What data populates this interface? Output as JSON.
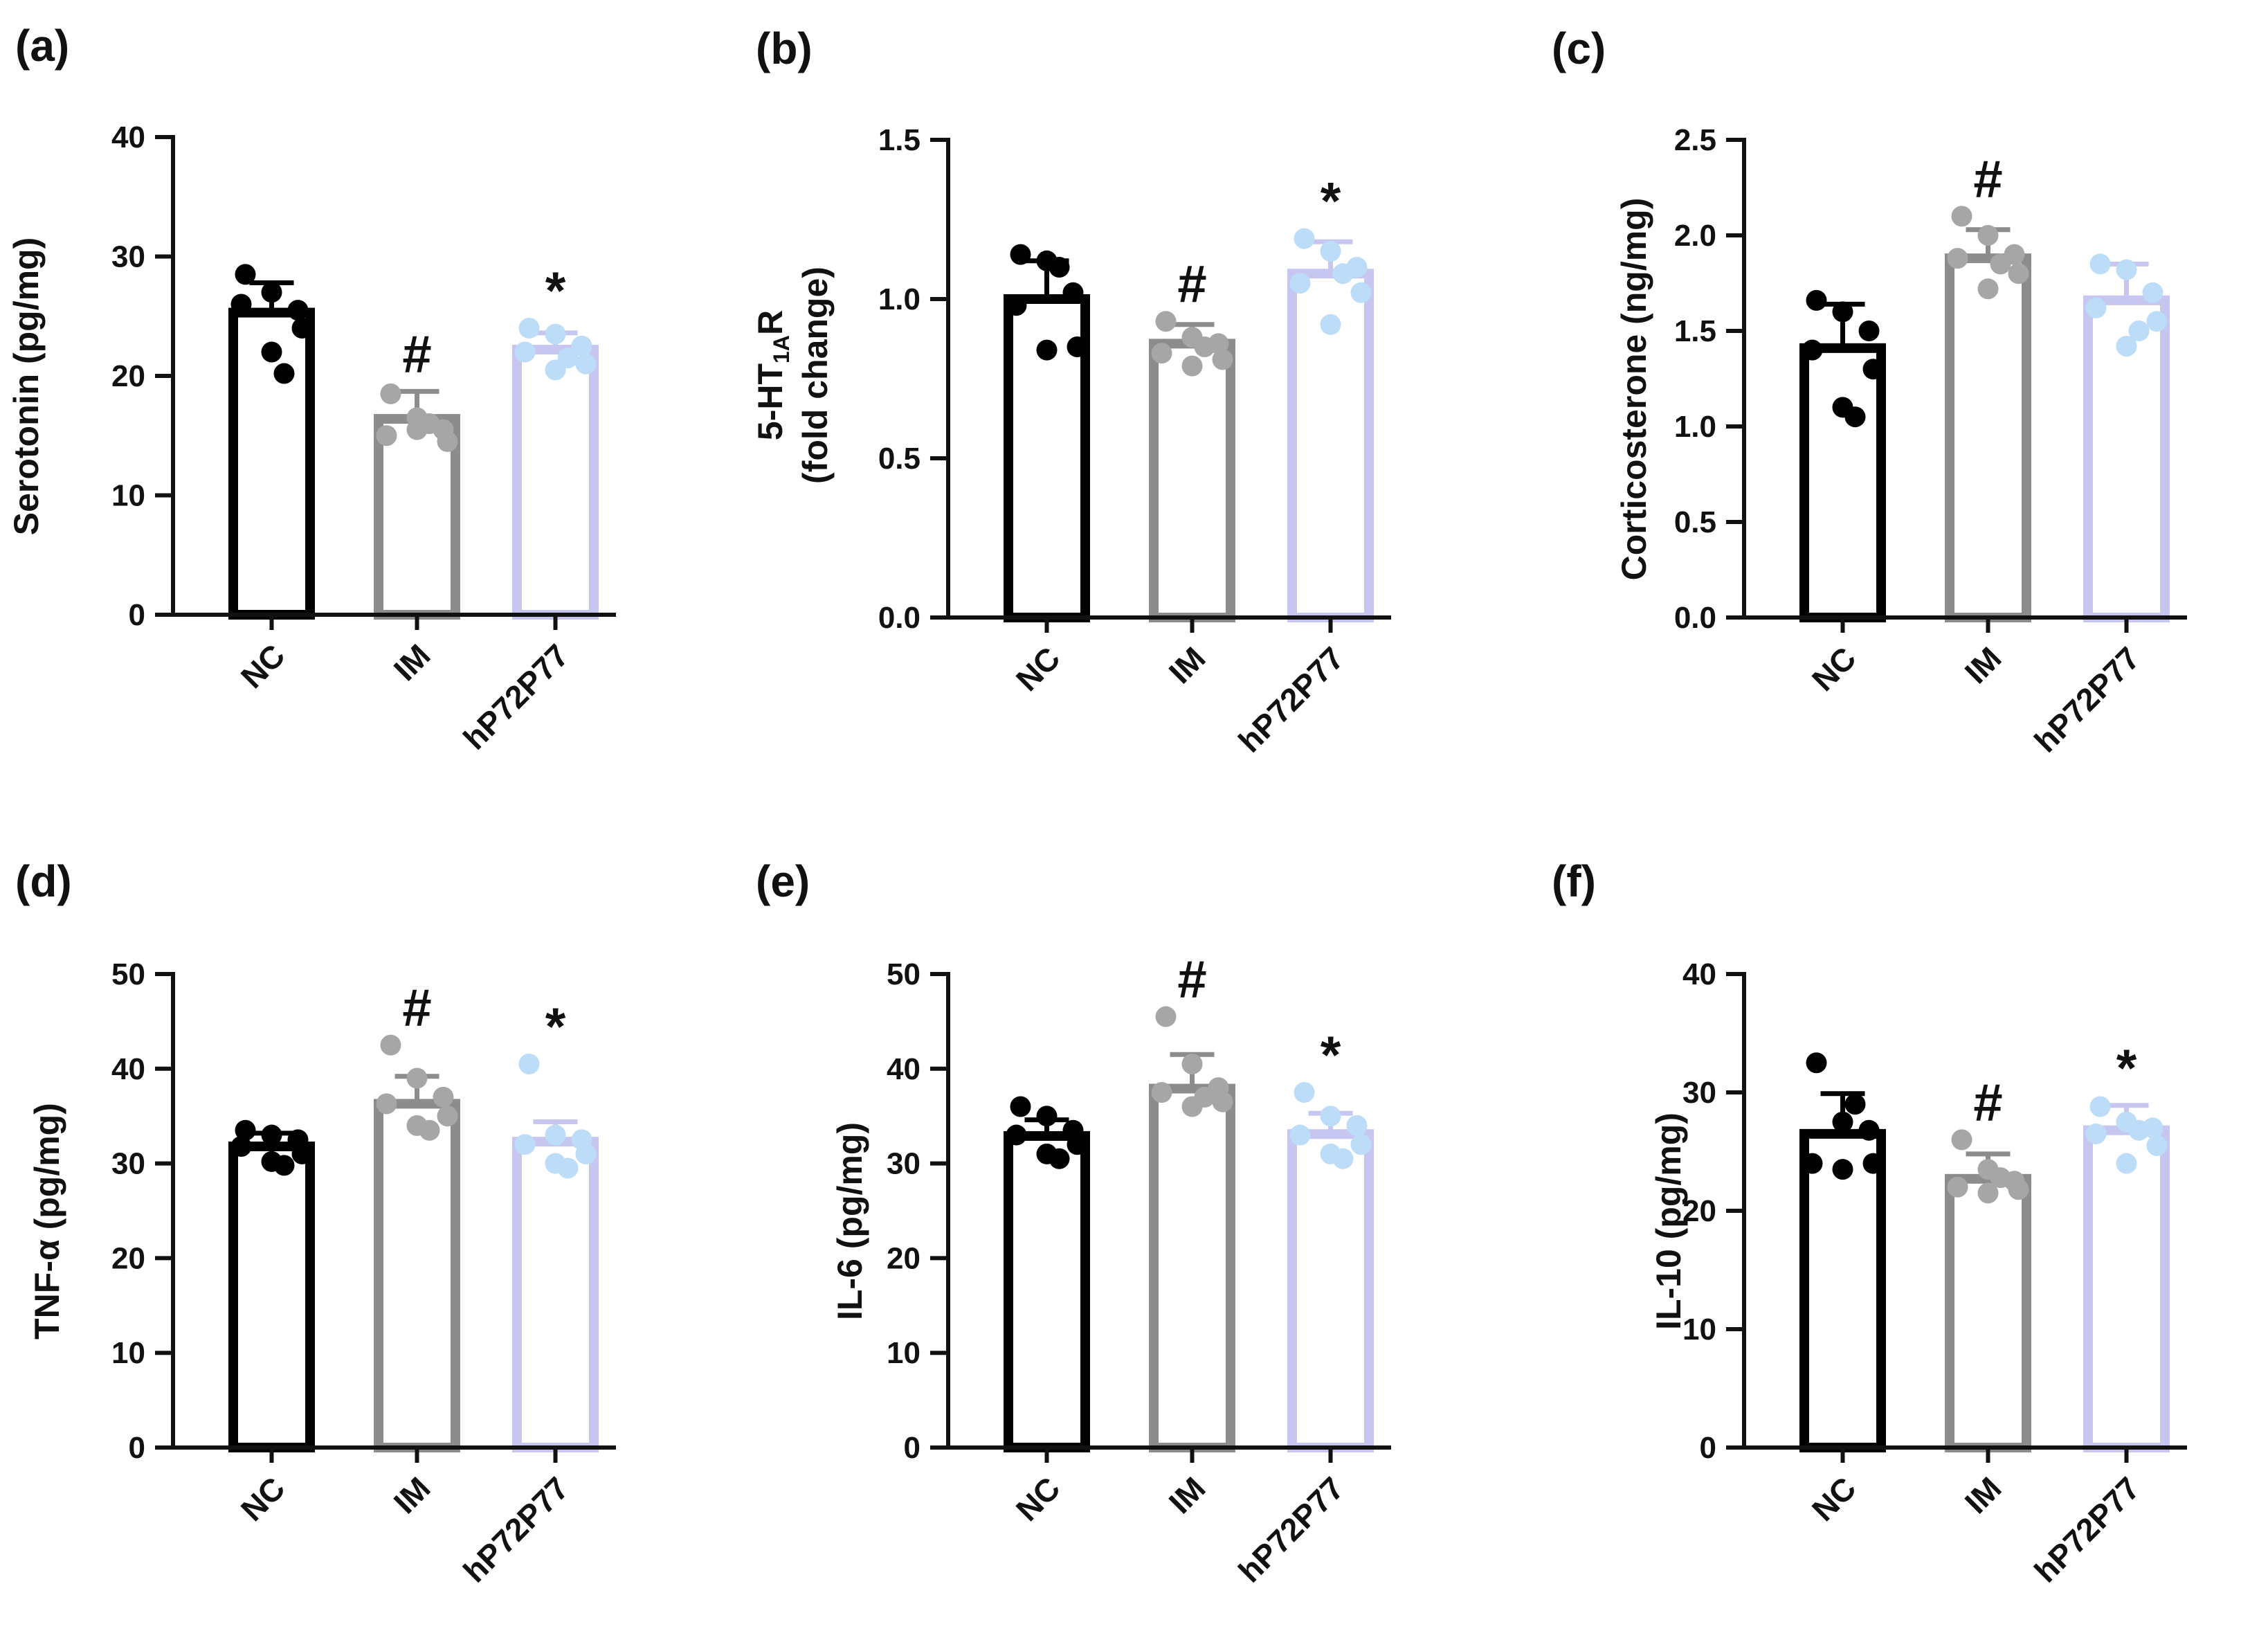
{
  "figure": {
    "background": "#ffffff"
  },
  "chart_data": [
    {
      "panel": "(a)",
      "type": "bar",
      "ylabel": "Serotonin (pg/mg)",
      "ylabel_line2": "",
      "ylim": [
        0,
        40
      ],
      "yticks": [
        0,
        10,
        20,
        30,
        40
      ],
      "ytick_labels": [
        "0",
        "10",
        "20",
        "30",
        "40"
      ],
      "categories": [
        "NC",
        "IM",
        "hP72P77"
      ],
      "colors": [
        "#000000",
        "#8c8c8c",
        "#c6c6f0"
      ],
      "dot_colors": [
        "#000000",
        "#a6a6a6",
        "#bcdcf8"
      ],
      "values": [
        25.3,
        16.4,
        22.2
      ],
      "errors": [
        2.5,
        2.3,
        1.4
      ],
      "points": [
        [
          28.5,
          27,
          25.5,
          26,
          24,
          22,
          20.2
        ],
        [
          18.5,
          16.5,
          15.5,
          15,
          14.5,
          15.5,
          16
        ],
        [
          24,
          23.5,
          22.5,
          22,
          21,
          20.5,
          21.5
        ]
      ],
      "annotations": [
        "",
        "#",
        "*"
      ]
    },
    {
      "panel": "(b)",
      "type": "bar",
      "ylabel": "5-HT",
      "ylabel_sub": "1A",
      "ylabel_suffix": "R",
      "ylabel_line2": "(fold change)",
      "ylim": [
        0,
        1.5
      ],
      "yticks": [
        0,
        0.5,
        1.0,
        1.5
      ],
      "ytick_labels": [
        "0.0",
        "0.5",
        "1.0",
        "1.5"
      ],
      "categories": [
        "NC",
        "IM",
        "hP72P77"
      ],
      "colors": [
        "#000000",
        "#8c8c8c",
        "#c6c6f0"
      ],
      "dot_colors": [
        "#000000",
        "#a6a6a6",
        "#bcdcf8"
      ],
      "values": [
        1.0,
        0.86,
        1.08
      ],
      "errors": [
        0.12,
        0.06,
        0.1
      ],
      "points": [
        [
          1.14,
          1.12,
          1.02,
          0.98,
          0.85,
          0.84,
          1.1
        ],
        [
          0.93,
          0.88,
          0.86,
          0.83,
          0.81,
          0.79,
          0.85
        ],
        [
          1.19,
          1.15,
          1.1,
          1.05,
          1.02,
          0.92,
          1.08
        ]
      ],
      "annotations": [
        "",
        "#",
        "*"
      ]
    },
    {
      "panel": "(c)",
      "type": "bar",
      "ylabel": "Corticosterone (ng/mg)",
      "ylabel_line2": "",
      "ylim": [
        0,
        2.5
      ],
      "yticks": [
        0,
        0.5,
        1.0,
        1.5,
        2.0,
        2.5
      ],
      "ytick_labels": [
        "0.0",
        "0.5",
        "1.0",
        "1.5",
        "2.0",
        "2.5"
      ],
      "categories": [
        "NC",
        "IM",
        "hP72P77"
      ],
      "colors": [
        "#000000",
        "#8c8c8c",
        "#c6c6f0"
      ],
      "dot_colors": [
        "#000000",
        "#a6a6a6",
        "#bcdcf8"
      ],
      "values": [
        1.41,
        1.88,
        1.66
      ],
      "errors": [
        0.23,
        0.15,
        0.19
      ],
      "points": [
        [
          1.66,
          1.6,
          1.5,
          1.4,
          1.3,
          1.1,
          1.05
        ],
        [
          2.1,
          2.0,
          1.9,
          1.88,
          1.8,
          1.72,
          1.85
        ],
        [
          1.85,
          1.82,
          1.7,
          1.62,
          1.55,
          1.42,
          1.5
        ]
      ],
      "annotations": [
        "",
        "#",
        ""
      ]
    },
    {
      "panel": "(d)",
      "type": "bar",
      "ylabel": "TNF-α (pg/mg)",
      "ylabel_line2": "",
      "ylim": [
        0,
        50
      ],
      "yticks": [
        0,
        10,
        20,
        30,
        40,
        50
      ],
      "ytick_labels": [
        "0",
        "10",
        "20",
        "30",
        "40",
        "50"
      ],
      "categories": [
        "NC",
        "IM",
        "hP72P77"
      ],
      "colors": [
        "#000000",
        "#8c8c8c",
        "#c6c6f0"
      ],
      "dot_colors": [
        "#000000",
        "#a6a6a6",
        "#bcdcf8"
      ],
      "values": [
        31.8,
        36.3,
        32.3
      ],
      "errors": [
        1.4,
        2.9,
        2.1
      ],
      "points": [
        [
          33.5,
          33,
          32.5,
          31.8,
          31,
          30.2,
          29.8
        ],
        [
          42.5,
          39,
          37,
          36.3,
          35,
          34,
          33.5
        ],
        [
          40.5,
          33,
          32.5,
          32,
          31,
          30,
          29.5
        ]
      ],
      "annotations": [
        "",
        "#",
        "*"
      ]
    },
    {
      "panel": "(e)",
      "type": "bar",
      "ylabel": "IL-6 (pg/mg)",
      "ylabel_line2": "",
      "ylim": [
        0,
        50
      ],
      "yticks": [
        0,
        10,
        20,
        30,
        40,
        50
      ],
      "ytick_labels": [
        "0",
        "10",
        "20",
        "30",
        "40",
        "50"
      ],
      "categories": [
        "NC",
        "IM",
        "hP72P77"
      ],
      "colors": [
        "#000000",
        "#8c8c8c",
        "#c6c6f0"
      ],
      "dot_colors": [
        "#000000",
        "#a6a6a6",
        "#bcdcf8"
      ],
      "values": [
        32.9,
        37.9,
        33.1
      ],
      "errors": [
        1.7,
        3.6,
        2.2
      ],
      "points": [
        [
          36,
          35,
          33.5,
          33,
          32,
          31,
          30.5
        ],
        [
          45.5,
          40.5,
          38,
          37.5,
          36.5,
          36,
          37
        ],
        [
          37.5,
          35,
          34,
          33,
          32,
          31,
          30.5
        ]
      ],
      "annotations": [
        "",
        "#",
        "*"
      ]
    },
    {
      "panel": "(f)",
      "type": "bar",
      "ylabel": "IL-10 (pg/mg)",
      "ylabel_line2": "",
      "ylim": [
        0,
        40
      ],
      "yticks": [
        0,
        10,
        20,
        30,
        40
      ],
      "ytick_labels": [
        "0",
        "10",
        "20",
        "30",
        "40"
      ],
      "categories": [
        "NC",
        "IM",
        "hP72P77"
      ],
      "colors": [
        "#000000",
        "#8c8c8c",
        "#c6c6f0"
      ],
      "dot_colors": [
        "#000000",
        "#a6a6a6",
        "#bcdcf8"
      ],
      "values": [
        26.5,
        22.7,
        26.8
      ],
      "errors": [
        3.4,
        2.1,
        2.1
      ],
      "points": [
        [
          32.5,
          27.5,
          26.8,
          24,
          24,
          23.5,
          29
        ],
        [
          26,
          23.5,
          22.5,
          22,
          21.8,
          21.5,
          22.8
        ],
        [
          28.8,
          27.5,
          27,
          26.5,
          25.5,
          24,
          26.8
        ]
      ],
      "annotations": [
        "",
        "#",
        "*"
      ]
    }
  ]
}
